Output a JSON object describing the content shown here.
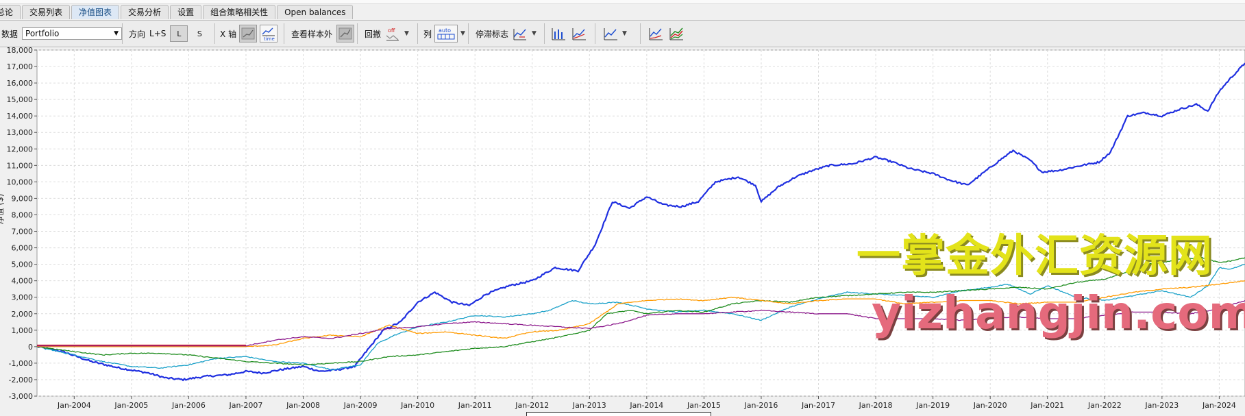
{
  "tabs": [
    "总论",
    "交易列表",
    "净值图表",
    "交易分析",
    "设置",
    "组合策略相关性",
    "Open balances"
  ],
  "active_tab": 2,
  "toolbar": {
    "dataset_label": "数据",
    "dataset_value": "Portfolio",
    "direction_label": "方向",
    "direction_value": "L+S",
    "long_label": "L",
    "short_label": "S",
    "xaxis_label": "X 轴",
    "time_label": "time",
    "oos_label": "查看样本外",
    "drawdown_label": "回撤",
    "off_label": "off",
    "column_label": "列",
    "auto_label": "auto",
    "stagnation_label": "停滞标志"
  },
  "watermark": {
    "line1": "一掌金外汇资源网",
    "line2": "yizhangjin.com",
    "color1": "#e3e31a",
    "color2": "#e56a7c"
  },
  "chart_data": {
    "type": "line",
    "ylabel": "净值 ($)",
    "ylim": [
      -3000,
      18000
    ],
    "yticks": [
      "-3,000",
      "-2,000",
      "-1,000",
      "0",
      "1,000",
      "2,000",
      "3,000",
      "4,000",
      "5,000",
      "6,000",
      "7,000",
      "8,000",
      "9,000",
      "10,000",
      "11,000",
      "12,000",
      "13,000",
      "14,000",
      "15,000",
      "16,000",
      "17,000",
      "18,000"
    ],
    "xlim": [
      2003.35,
      2024.45
    ],
    "xticks": [
      "Jan-2004",
      "Jan-2005",
      "Jan-2006",
      "Jan-2007",
      "Jan-2008",
      "Jan-2009",
      "Jan-2010",
      "Jan-2011",
      "Jan-2012",
      "Jan-2013",
      "Jan-2014",
      "Jan-2015",
      "Jan-2016",
      "Jan-2017",
      "Jan-2018",
      "Jan-2019",
      "Jan-2020",
      "Jan-2021",
      "Jan-2022",
      "Jan-2023",
      "Jan-2024"
    ],
    "grid": true,
    "series": [
      {
        "color": "#1f2fe0",
        "x": [
          2003.35,
          2003.8,
          2004.3,
          2004.8,
          2005.3,
          2005.6,
          2005.9,
          2006.3,
          2006.7,
          2007.0,
          2007.3,
          2007.6,
          2008.0,
          2008.3,
          2008.6,
          2008.9,
          2009.1,
          2009.4,
          2009.7,
          2010.0,
          2010.3,
          2010.6,
          2010.9,
          2011.2,
          2011.6,
          2012.0,
          2012.4,
          2012.8,
          2013.1,
          2013.4,
          2013.7,
          2014.0,
          2014.3,
          2014.6,
          2014.9,
          2015.2,
          2015.6,
          2015.9,
          2016.0,
          2016.3,
          2016.6,
          2016.9,
          2017.2,
          2017.6,
          2018.0,
          2018.3,
          2018.6,
          2019.0,
          2019.3,
          2019.6,
          2019.9,
          2020.2,
          2020.4,
          2020.7,
          2020.9,
          2021.2,
          2021.6,
          2021.9,
          2022.1,
          2022.4,
          2022.7,
          2023.0,
          2023.3,
          2023.6,
          2023.8,
          2024.0,
          2024.2,
          2024.45
        ],
        "y": [
          0,
          -300,
          -900,
          -1300,
          -1600,
          -1900,
          -2000,
          -1800,
          -1700,
          -1500,
          -1600,
          -1400,
          -1200,
          -1500,
          -1400,
          -1200,
          -300,
          1000,
          1500,
          2700,
          3300,
          2700,
          2500,
          3200,
          3700,
          4000,
          4800,
          4600,
          6200,
          8800,
          8400,
          9100,
          8600,
          8500,
          8800,
          10000,
          10300,
          9800,
          8800,
          9700,
          10300,
          10700,
          11000,
          11100,
          11500,
          11200,
          10800,
          10500,
          10100,
          9800,
          10600,
          11400,
          11900,
          11300,
          10600,
          10700,
          11000,
          11200,
          11800,
          14000,
          14200,
          14000,
          14400,
          14700,
          14300,
          15500,
          16300,
          17200
        ]
      },
      {
        "color": "#19a0c8",
        "x": [
          2003.35,
          2004.0,
          2004.5,
          2005.0,
          2005.5,
          2006.0,
          2006.5,
          2007.0,
          2007.5,
          2008.0,
          2008.5,
          2009.0,
          2009.3,
          2009.6,
          2010.0,
          2010.5,
          2011.0,
          2011.5,
          2012.0,
          2012.3,
          2012.7,
          2013.0,
          2013.5,
          2014.0,
          2014.5,
          2015.0,
          2015.5,
          2016.0,
          2016.5,
          2017.0,
          2017.5,
          2018.0,
          2018.5,
          2019.0,
          2019.5,
          2020.0,
          2020.3,
          2020.7,
          2021.0,
          2021.5,
          2022.0,
          2022.5,
          2023.0,
          2023.5,
          2023.8,
          2024.0,
          2024.2,
          2024.45
        ],
        "y": [
          0,
          -500,
          -900,
          -1200,
          -1300,
          -1100,
          -700,
          -600,
          -900,
          -1000,
          -1400,
          -1100,
          200,
          700,
          1200,
          1500,
          1900,
          1800,
          2000,
          2200,
          2800,
          2600,
          2700,
          2300,
          2100,
          2200,
          2000,
          1600,
          2400,
          2900,
          3300,
          3200,
          3100,
          3000,
          3400,
          3600,
          3800,
          3200,
          3700,
          3000,
          2800,
          3100,
          3400,
          3000,
          3700,
          4800,
          4700,
          5000
        ]
      },
      {
        "color": "#1e8c1e",
        "x": [
          2003.35,
          2004.0,
          2004.5,
          2005.0,
          2005.5,
          2006.0,
          2006.5,
          2007.0,
          2007.5,
          2008.0,
          2008.5,
          2009.0,
          2009.5,
          2010.0,
          2010.5,
          2011.0,
          2011.5,
          2012.0,
          2012.5,
          2013.0,
          2013.3,
          2013.7,
          2014.0,
          2014.5,
          2015.0,
          2015.5,
          2016.0,
          2016.5,
          2017.0,
          2017.5,
          2018.0,
          2018.5,
          2019.0,
          2019.5,
          2020.0,
          2020.5,
          2021.0,
          2021.5,
          2022.0,
          2022.3,
          2022.7,
          2023.0,
          2023.3,
          2023.7,
          2024.0,
          2024.2,
          2024.45
        ],
        "y": [
          0,
          -300,
          -500,
          -400,
          -400,
          -500,
          -700,
          -900,
          -1000,
          -1100,
          -1000,
          -900,
          -600,
          -500,
          -300,
          -100,
          0,
          300,
          600,
          1000,
          2000,
          2200,
          2000,
          2200,
          2100,
          2600,
          2800,
          2700,
          3000,
          3100,
          3200,
          3300,
          3300,
          3400,
          3500,
          3600,
          3500,
          3900,
          4100,
          4400,
          5000,
          5100,
          5300,
          5400,
          5100,
          5200,
          5400
        ]
      },
      {
        "color": "#ff9a00",
        "x": [
          2003.35,
          2007.0,
          2007.5,
          2008.0,
          2008.5,
          2009.0,
          2009.5,
          2010.0,
          2010.5,
          2011.0,
          2011.5,
          2012.0,
          2012.5,
          2013.0,
          2013.5,
          2014.0,
          2014.5,
          2015.0,
          2015.5,
          2016.0,
          2016.5,
          2017.0,
          2017.5,
          2018.0,
          2018.5,
          2019.0,
          2019.5,
          2020.0,
          2020.5,
          2021.0,
          2021.5,
          2022.0,
          2022.5,
          2023.0,
          2023.5,
          2024.0,
          2024.45
        ],
        "y": [
          0,
          0,
          100,
          500,
          700,
          600,
          1300,
          800,
          900,
          700,
          500,
          900,
          1000,
          1400,
          2600,
          2800,
          2900,
          2800,
          3000,
          2800,
          2600,
          2800,
          2900,
          2900,
          2600,
          2700,
          2800,
          2800,
          2600,
          2700,
          2700,
          3000,
          3300,
          3500,
          3600,
          3800,
          4000
        ]
      },
      {
        "color": "#8c1a8c",
        "x": [
          2003.35,
          2007.0,
          2007.5,
          2008.0,
          2008.5,
          2009.0,
          2009.5,
          2010.0,
          2010.5,
          2011.0,
          2011.5,
          2012.0,
          2012.5,
          2013.0,
          2013.5,
          2014.0,
          2014.5,
          2015.0,
          2015.5,
          2016.0,
          2016.5,
          2017.0,
          2017.5,
          2018.0,
          2018.5,
          2019.0,
          2019.5,
          2020.0,
          2020.5,
          2021.0,
          2021.5,
          2022.0,
          2022.5,
          2023.0,
          2023.5,
          2024.0,
          2024.45
        ],
        "y": [
          50,
          50,
          400,
          600,
          500,
          800,
          1100,
          1200,
          1400,
          1500,
          1400,
          1300,
          1200,
          1100,
          1400,
          1900,
          2000,
          2000,
          2100,
          2200,
          2100,
          2000,
          2000,
          1700,
          1700,
          1700,
          1600,
          1700,
          1800,
          1700,
          1700,
          1900,
          2100,
          2100,
          2000,
          2300,
          2800
        ]
      },
      {
        "color": "#d22020",
        "x": [
          2003.35,
          2007.0
        ],
        "y": [
          100,
          100
        ]
      }
    ]
  }
}
